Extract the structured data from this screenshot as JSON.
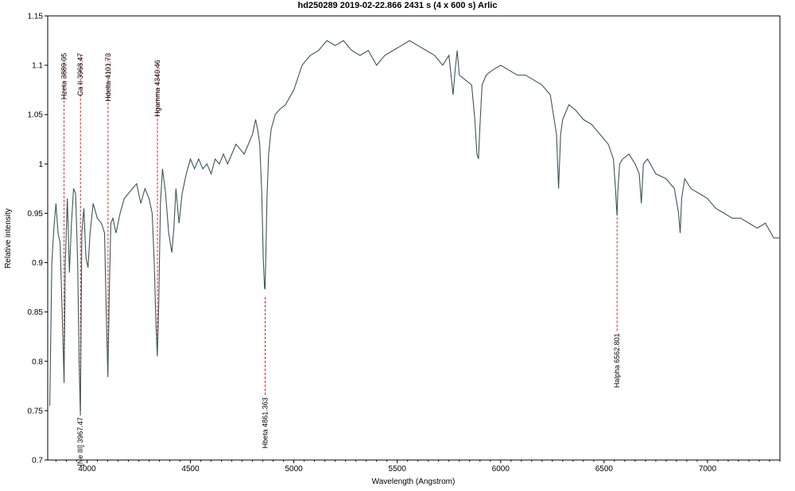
{
  "chart_data": {
    "type": "line",
    "title": "hd250289   2019-02-22.866   2431 s (4 x 600 s)   Arlic",
    "xlabel": "Wavelength (Angstrom)",
    "ylabel": "Relative intensity",
    "xlim": [
      3810,
      7350
    ],
    "ylim": [
      0.7,
      1.15
    ],
    "x_ticks": [
      4000,
      4500,
      5000,
      5500,
      6000,
      6500,
      7000
    ],
    "y_ticks": [
      0.7,
      0.75,
      0.8,
      0.85,
      0.9,
      0.95,
      1,
      1.05,
      1.1,
      1.15
    ],
    "x_tick_labels": [
      "4000",
      "4500",
      "5000",
      "5500",
      "6000",
      "6500",
      "7000"
    ],
    "y_tick_labels": [
      "0.7",
      "0.75",
      "0.8",
      "0.85",
      "0.9",
      "0.95",
      "1",
      "1.05",
      "1.1",
      "1.15"
    ],
    "grid": false,
    "line_color": "#3d5656",
    "marker_color": "#e02020",
    "series": [
      {
        "x": [
          3820,
          3830,
          3840,
          3850,
          3860,
          3870,
          3880,
          3889,
          3895,
          3905,
          3915,
          3925,
          3935,
          3945,
          3955,
          3962,
          3968,
          3975,
          3985,
          3995,
          4005,
          4015,
          4030,
          4050,
          4070,
          4085,
          4094,
          4101,
          4108,
          4115,
          4125,
          4140,
          4160,
          4180,
          4200,
          4220,
          4240,
          4260,
          4280,
          4300,
          4315,
          4325,
          4333,
          4340,
          4347,
          4355,
          4365,
          4380,
          4395,
          4410,
          4420,
          4430,
          4445,
          4460,
          4480,
          4500,
          4520,
          4540,
          4560,
          4580,
          4600,
          4620,
          4640,
          4660,
          4680,
          4700,
          4720,
          4740,
          4760,
          4780,
          4800,
          4815,
          4825,
          4835,
          4845,
          4852,
          4858,
          4861,
          4865,
          4870,
          4878,
          4890,
          4910,
          4930,
          4960,
          5000,
          5040,
          5080,
          5120,
          5160,
          5200,
          5240,
          5280,
          5320,
          5360,
          5400,
          5440,
          5480,
          5520,
          5560,
          5600,
          5640,
          5680,
          5720,
          5750,
          5770,
          5780,
          5790,
          5800,
          5830,
          5860,
          5875,
          5885,
          5893,
          5900,
          5910,
          5930,
          5960,
          6000,
          6040,
          6080,
          6120,
          6160,
          6200,
          6240,
          6270,
          6280,
          6290,
          6300,
          6330,
          6360,
          6400,
          6440,
          6480,
          6520,
          6545,
          6555,
          6560,
          6563,
          6566,
          6575,
          6590,
          6620,
          6650,
          6670,
          6680,
          6690,
          6710,
          6750,
          6800,
          6840,
          6860,
          6868,
          6875,
          6890,
          6920,
          6960,
          7000,
          7040,
          7080,
          7120,
          7160,
          7200,
          7240,
          7280,
          7320,
          7350
        ],
        "y": [
          0.755,
          0.9,
          0.935,
          0.96,
          0.93,
          0.92,
          0.85,
          0.778,
          0.9,
          0.965,
          0.89,
          0.94,
          0.975,
          0.97,
          0.9,
          0.8,
          0.745,
          0.93,
          0.955,
          0.905,
          0.895,
          0.93,
          0.96,
          0.945,
          0.94,
          0.93,
          0.84,
          0.784,
          0.87,
          0.94,
          0.945,
          0.93,
          0.95,
          0.965,
          0.97,
          0.975,
          0.98,
          0.96,
          0.975,
          0.965,
          0.95,
          0.9,
          0.84,
          0.805,
          0.86,
          0.96,
          0.995,
          0.97,
          0.93,
          0.91,
          0.935,
          0.975,
          0.94,
          0.97,
          0.99,
          1.005,
          0.995,
          1.005,
          0.995,
          1.0,
          0.99,
          1.005,
          1.0,
          1.01,
          1.0,
          1.01,
          1.02,
          1.015,
          1.01,
          1.02,
          1.03,
          1.045,
          1.035,
          1.02,
          0.97,
          0.905,
          0.875,
          0.873,
          0.91,
          0.965,
          1.01,
          1.035,
          1.05,
          1.055,
          1.06,
          1.075,
          1.1,
          1.11,
          1.115,
          1.125,
          1.12,
          1.125,
          1.115,
          1.11,
          1.115,
          1.1,
          1.11,
          1.115,
          1.12,
          1.125,
          1.12,
          1.115,
          1.11,
          1.1,
          1.11,
          1.07,
          1.095,
          1.115,
          1.09,
          1.085,
          1.08,
          1.045,
          1.01,
          1.005,
          1.04,
          1.08,
          1.09,
          1.095,
          1.1,
          1.095,
          1.09,
          1.09,
          1.085,
          1.08,
          1.07,
          1.03,
          0.975,
          1.03,
          1.045,
          1.06,
          1.055,
          1.045,
          1.04,
          1.03,
          1.02,
          1.005,
          0.975,
          0.955,
          0.948,
          0.97,
          1.0,
          1.005,
          1.01,
          1.0,
          0.99,
          0.96,
          1.0,
          1.005,
          0.99,
          0.985,
          0.975,
          0.95,
          0.93,
          0.965,
          0.985,
          0.975,
          0.97,
          0.965,
          0.955,
          0.95,
          0.945,
          0.945,
          0.94,
          0.935,
          0.94,
          0.925,
          0.925
        ]
      }
    ],
    "line_markers": [
      {
        "label": "Hzeta 3889.05",
        "x": 3889.05,
        "position": "top",
        "y_from": 0.78,
        "y_to": 1.11
      },
      {
        "label": "Ca II 3968.47",
        "x": 3968.47,
        "position": "top",
        "y_from": 0.75,
        "y_to": 1.11
      },
      {
        "label": "Hdelta 4101.73",
        "x": 4101.73,
        "position": "top",
        "y_from": 0.79,
        "y_to": 1.11
      },
      {
        "label": "Hgamma 4340.46",
        "x": 4340.46,
        "position": "top",
        "y_from": 0.81,
        "y_to": 1.103
      },
      {
        "label": "[Ne III] 3967.47",
        "x": 3967.47,
        "position": "bottom",
        "y_from": 0.745,
        "y_to": 0.745
      },
      {
        "label": "Hbeta 4861.363",
        "x": 4861.363,
        "position": "bottom",
        "y_from": 0.865,
        "y_to": 0.765
      },
      {
        "label": "Halpha 6562.801",
        "x": 6562.801,
        "position": "bottom",
        "y_from": 0.95,
        "y_to": 0.83
      }
    ]
  }
}
